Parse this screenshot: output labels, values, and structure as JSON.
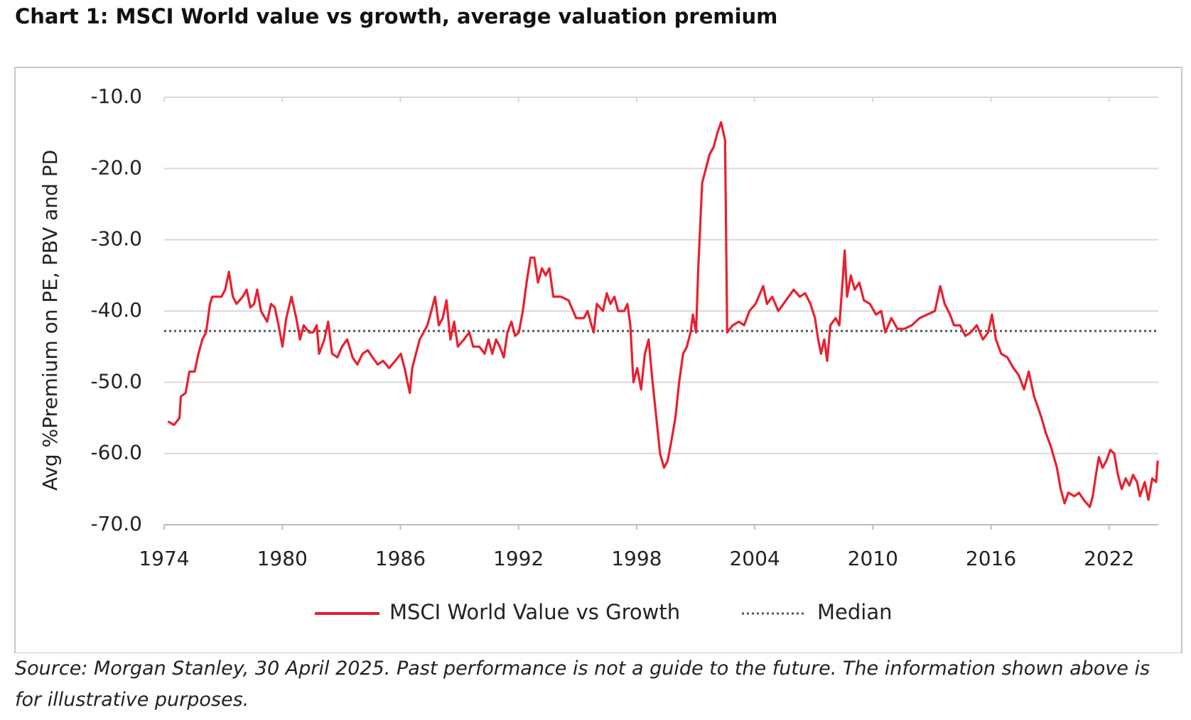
{
  "chart_data": {
    "type": "line",
    "title": "Chart 1: MSCI World value vs growth, average valuation premium",
    "y_label": "Avg %Premium on PE, PBV and PD",
    "source": "Source: Morgan Stanley, 30 April 2025. Past performance is not a guide to the future. The information shown above is for illustrative purposes.",
    "xlim": [
      1974,
      2024.5
    ],
    "xticks": [
      1974,
      1980,
      1986,
      1992,
      1998,
      2004,
      2010,
      2016,
      2022
    ],
    "ylim": [
      -70,
      -10
    ],
    "yticks": [
      {
        "value": -10,
        "label": "-10.0"
      },
      {
        "value": -20,
        "label": "-20.0"
      },
      {
        "value": -30,
        "label": "-30.0"
      },
      {
        "value": -40,
        "label": "-40.0"
      },
      {
        "value": -50,
        "label": "-50.0"
      },
      {
        "value": -60,
        "label": "-60.0"
      },
      {
        "value": -70,
        "label": "-70.0"
      }
    ],
    "grid": true,
    "legend": "bottom",
    "series": [
      {
        "name": "MSCI World Value vs Growth",
        "color": "#e8202f",
        "x": [
          1974.19,
          1974.5,
          1974.78,
          1974.85,
          1975.09,
          1975.28,
          1975.55,
          1975.74,
          1975.94,
          1976.13,
          1976.33,
          1976.44,
          1976.91,
          1977.1,
          1977.29,
          1977.49,
          1977.68,
          1977.99,
          1978.19,
          1978.38,
          1978.57,
          1978.73,
          1978.92,
          1979.23,
          1979.43,
          1979.62,
          1979.81,
          1980.01,
          1980.2,
          1980.47,
          1980.71,
          1980.9,
          1981.09,
          1981.36,
          1981.56,
          1981.75,
          1981.87,
          1982.14,
          1982.33,
          1982.53,
          1982.8,
          1983.03,
          1983.3,
          1983.57,
          1983.81,
          1984.08,
          1984.35,
          1984.58,
          1984.85,
          1985.12,
          1985.43,
          1985.74,
          1986.02,
          1986.21,
          1986.48,
          1986.6,
          1986.79,
          1986.98,
          1987.18,
          1987.37,
          1987.57,
          1987.76,
          1987.95,
          1988.15,
          1988.34,
          1988.54,
          1988.73,
          1988.92,
          1989.23,
          1989.5,
          1989.7,
          1990.01,
          1990.28,
          1990.47,
          1990.67,
          1990.86,
          1991.05,
          1991.25,
          1991.44,
          1991.64,
          1991.83,
          1992.02,
          1992.22,
          1992.41,
          1992.61,
          1992.8,
          1992.99,
          1993.19,
          1993.38,
          1993.57,
          1993.77,
          1994.16,
          1994.54,
          1994.93,
          1995.32,
          1995.51,
          1995.71,
          1995.82,
          1995.98,
          1996.29,
          1996.48,
          1996.67,
          1996.87,
          1997.06,
          1997.37,
          1997.53,
          1997.68,
          1997.84,
          1998.03,
          1998.23,
          1998.42,
          1998.61,
          1998.81,
          1999.0,
          1999.19,
          1999.39,
          1999.58,
          1999.78,
          1999.97,
          2000.16,
          2000.36,
          2000.55,
          2000.74,
          2000.86,
          2001.02,
          2001.13,
          2001.33,
          2001.52,
          2001.71,
          2001.91,
          2002.1,
          2002.29,
          2002.49,
          2002.6,
          2002.88,
          2003.19,
          2003.46,
          2003.73,
          2004.04,
          2004.43,
          2004.62,
          2004.89,
          2005.2,
          2005.59,
          2005.98,
          2006.29,
          2006.56,
          2006.83,
          2007.06,
          2007.22,
          2007.37,
          2007.53,
          2007.68,
          2007.84,
          2008.11,
          2008.3,
          2008.46,
          2008.57,
          2008.69,
          2008.88,
          2009.08,
          2009.31,
          2009.54,
          2009.85,
          2010.16,
          2010.43,
          2010.63,
          2010.94,
          2011.25,
          2011.6,
          2011.98,
          2012.37,
          2012.76,
          2013.15,
          2013.42,
          2013.65,
          2013.92,
          2014.12,
          2014.43,
          2014.7,
          2014.97,
          2015.28,
          2015.59,
          2015.86,
          2016.05,
          2016.25,
          2016.52,
          2016.83,
          2017.14,
          2017.41,
          2017.68,
          2017.92,
          2018.19,
          2018.38,
          2018.57,
          2018.77,
          2019.04,
          2019.35,
          2019.54,
          2019.74,
          2019.93,
          2020.24,
          2020.47,
          2020.71,
          2021.02,
          2021.17,
          2021.33,
          2021.48,
          2021.67,
          2021.87,
          2022.06,
          2022.26,
          2022.45,
          2022.64,
          2022.84,
          2023.03,
          2023.22,
          2023.42,
          2023.57,
          2023.81,
          2024.0,
          2024.19,
          2024.39,
          2024.47
        ],
        "values": [
          -55.5,
          -56,
          -55,
          -52,
          -51.5,
          -48.5,
          -48.5,
          -46,
          -44,
          -43,
          -39,
          -38,
          -38,
          -37,
          -34.5,
          -38,
          -39,
          -38,
          -37,
          -39.5,
          -39,
          -37,
          -40,
          -41.5,
          -39,
          -39.5,
          -42,
          -45,
          -41,
          -38,
          -41,
          -44,
          -42,
          -43,
          -43,
          -42,
          -46,
          -44,
          -41.5,
          -46,
          -46.5,
          -45,
          -44,
          -46.5,
          -47.5,
          -46,
          -45.5,
          -46.5,
          -47.5,
          -47,
          -48,
          -47,
          -46,
          -48,
          -51.5,
          -48,
          -46,
          -44,
          -43,
          -42,
          -40,
          -38,
          -42,
          -41,
          -38.5,
          -44,
          -41.5,
          -45,
          -44,
          -43,
          -45,
          -45,
          -46,
          -44,
          -46,
          -44,
          -45,
          -46.5,
          -43,
          -41.5,
          -43.5,
          -43,
          -40,
          -36,
          -32.5,
          -32.5,
          -36,
          -34,
          -35,
          -34,
          -38,
          -38,
          -38.5,
          -41,
          -41,
          -40,
          -42,
          -43,
          -39,
          -40,
          -37.5,
          -39,
          -38,
          -40,
          -40,
          -39,
          -42,
          -50,
          -48,
          -51,
          -46,
          -44,
          -50,
          -55,
          -60,
          -62,
          -61,
          -58,
          -55,
          -50,
          -46,
          -45,
          -43,
          -40.5,
          -43,
          -34,
          -22,
          -20,
          -18,
          -17,
          -15,
          -13.5,
          -16,
          -43,
          -42,
          -41.5,
          -42,
          -40,
          -39,
          -36.5,
          -39,
          -38,
          -40,
          -38.5,
          -37,
          -38,
          -37.5,
          -39,
          -41,
          -44,
          -46,
          -44,
          -47,
          -42,
          -41,
          -42,
          -36,
          -31.5,
          -38,
          -35,
          -37,
          -36,
          -38.5,
          -39,
          -40.5,
          -40,
          -43,
          -41,
          -42.5,
          -42.5,
          -42,
          -41,
          -40.5,
          -40,
          -36.5,
          -39,
          -40.5,
          -42,
          -42,
          -43.5,
          -43,
          -42,
          -44,
          -43,
          -40.5,
          -44,
          -46,
          -46.5,
          -48,
          -49,
          -51,
          -48.5,
          -52,
          -53.5,
          -55,
          -57,
          -59,
          -62,
          -65,
          -67,
          -65.5,
          -66,
          -65.5,
          -66.5,
          -67.5,
          -66,
          -63,
          -60.5,
          -62,
          -61,
          -59.5,
          -60,
          -63,
          -65,
          -63.5,
          -64.5,
          -63,
          -64,
          -66,
          -64,
          -66.5,
          -63.5,
          -64,
          -61
        ]
      }
    ],
    "median": {
      "name": "Median",
      "value": -42.8,
      "color": "#555555"
    }
  }
}
